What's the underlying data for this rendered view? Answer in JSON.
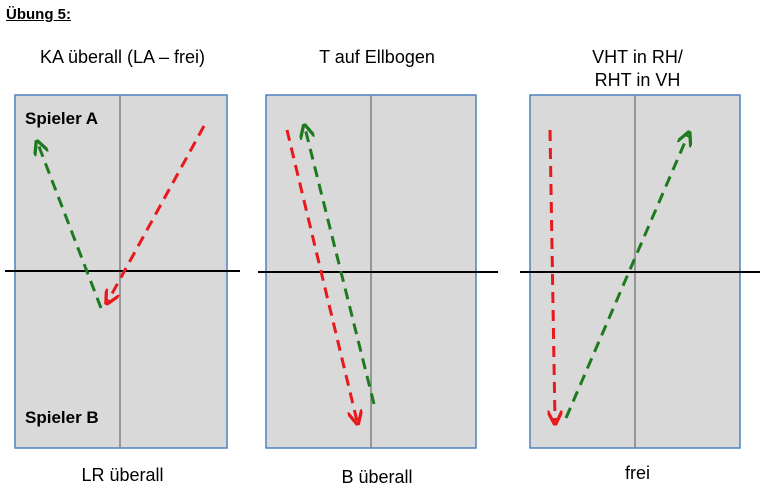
{
  "title": "Übung 5:",
  "panels": [
    {
      "heading": "KA überall (LA – frei)",
      "footer": "LR überall",
      "player_top": "Spieler A",
      "player_bottom": "Spieler B"
    },
    {
      "heading": "T auf Ellbogen",
      "footer": "B überall"
    },
    {
      "heading_line1": "VHT in RH/",
      "heading_line2": "RHT in VH",
      "footer": "frei"
    }
  ],
  "colors": {
    "table_fill": "#d9d9d9",
    "table_border": "#4f81bd",
    "center_line": "#808080",
    "net_line": "#000000",
    "arrow_red": "#e8191c",
    "arrow_green": "#1e7a1e"
  }
}
